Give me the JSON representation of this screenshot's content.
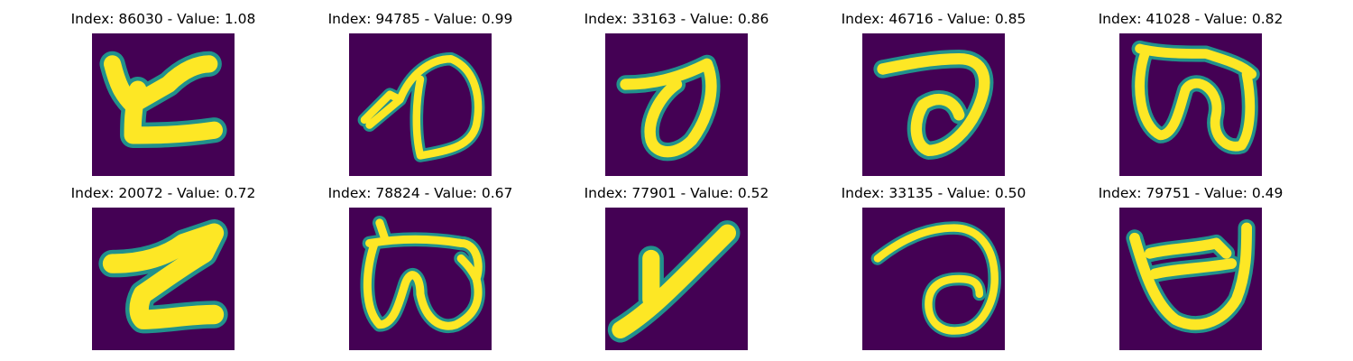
{
  "palette": {
    "background": "#440154",
    "stroke": "#fde725",
    "edge": "#21918c",
    "mid": "#5ec962"
  },
  "panels": [
    {
      "title": "Index: 86030 - Value: 1.08",
      "glyph": "handwritten-character-86030"
    },
    {
      "title": "Index: 94785 - Value: 0.99",
      "glyph": "handwritten-character-94785"
    },
    {
      "title": "Index: 33163 - Value: 0.86",
      "glyph": "handwritten-character-33163"
    },
    {
      "title": "Index: 46716 - Value: 0.85",
      "glyph": "handwritten-character-46716"
    },
    {
      "title": "Index: 41028 - Value: 0.82",
      "glyph": "handwritten-character-41028"
    },
    {
      "title": "Index: 20072 - Value: 0.72",
      "glyph": "handwritten-character-20072"
    },
    {
      "title": "Index: 78824 - Value: 0.67",
      "glyph": "handwritten-character-78824"
    },
    {
      "title": "Index: 77901 - Value: 0.52",
      "glyph": "handwritten-character-77901"
    },
    {
      "title": "Index: 33135 - Value: 0.50",
      "glyph": "handwritten-character-33135"
    },
    {
      "title": "Index: 79751 - Value: 0.49",
      "glyph": "handwritten-character-79751"
    }
  ]
}
